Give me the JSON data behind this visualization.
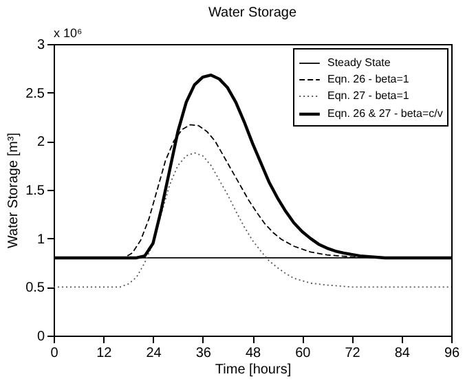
{
  "chart_data": {
    "type": "line",
    "title": "Water Storage",
    "xlabel": "Time [hours]",
    "ylabel": "Water Storage [m³]",
    "annotations": [
      "x 10⁶"
    ],
    "xlim": [
      0,
      96
    ],
    "xticks": [
      0,
      12,
      24,
      36,
      48,
      60,
      72,
      84,
      96
    ],
    "ylim": [
      0,
      3
    ],
    "yticks": [
      0,
      0.5,
      1,
      1.5,
      2,
      2.5,
      3
    ],
    "grid": false,
    "legend": "top right",
    "marker": "none",
    "series": [
      {
        "name": "Steady State",
        "color": "#000000",
        "line_style": "solid",
        "x": [
          0,
          96
        ],
        "values": [
          0.8,
          0.8
        ]
      },
      {
        "name": "Eqn. 26 - beta=1",
        "color": "#000000",
        "line_style": "dashed",
        "x": [
          0,
          17,
          19,
          21,
          23,
          25,
          27,
          29,
          31,
          33,
          35,
          37,
          39,
          41,
          43,
          45,
          47,
          49,
          51,
          53,
          55,
          58,
          62,
          66,
          72,
          80,
          96
        ],
        "values": [
          0.8,
          0.8,
          0.85,
          0.98,
          1.2,
          1.5,
          1.8,
          2.0,
          2.12,
          2.17,
          2.16,
          2.1,
          2.0,
          1.85,
          1.7,
          1.55,
          1.4,
          1.27,
          1.15,
          1.06,
          0.99,
          0.92,
          0.86,
          0.83,
          0.81,
          0.8,
          0.8
        ]
      },
      {
        "name": "Eqn. 27 - beta=1",
        "color": "#555555",
        "line_style": "dotted",
        "x": [
          0,
          16,
          18,
          20,
          22,
          24,
          26,
          28,
          30,
          32,
          34,
          36,
          38,
          40,
          42,
          44,
          46,
          48,
          50,
          52,
          54,
          56,
          58,
          62,
          66,
          72,
          96
        ],
        "values": [
          0.5,
          0.5,
          0.53,
          0.6,
          0.75,
          0.95,
          1.25,
          1.55,
          1.75,
          1.85,
          1.88,
          1.85,
          1.75,
          1.6,
          1.45,
          1.28,
          1.12,
          0.98,
          0.87,
          0.77,
          0.7,
          0.64,
          0.59,
          0.54,
          0.52,
          0.5,
          0.5
        ]
      },
      {
        "name": "Eqn. 26 & 27 - beta=c/v",
        "color": "#000000",
        "line_style": "solid",
        "x": [
          0,
          20,
          22,
          24,
          26,
          28,
          30,
          32,
          34,
          36,
          38,
          40,
          42,
          44,
          46,
          48,
          50,
          52,
          54,
          56,
          58,
          60,
          62,
          64,
          66,
          68,
          70,
          74,
          80,
          96
        ],
        "values": [
          0.8,
          0.8,
          0.82,
          0.95,
          1.3,
          1.7,
          2.1,
          2.4,
          2.58,
          2.66,
          2.68,
          2.64,
          2.55,
          2.4,
          2.2,
          1.98,
          1.78,
          1.58,
          1.42,
          1.28,
          1.16,
          1.07,
          1.0,
          0.94,
          0.9,
          0.87,
          0.85,
          0.82,
          0.8,
          0.8
        ]
      }
    ]
  }
}
